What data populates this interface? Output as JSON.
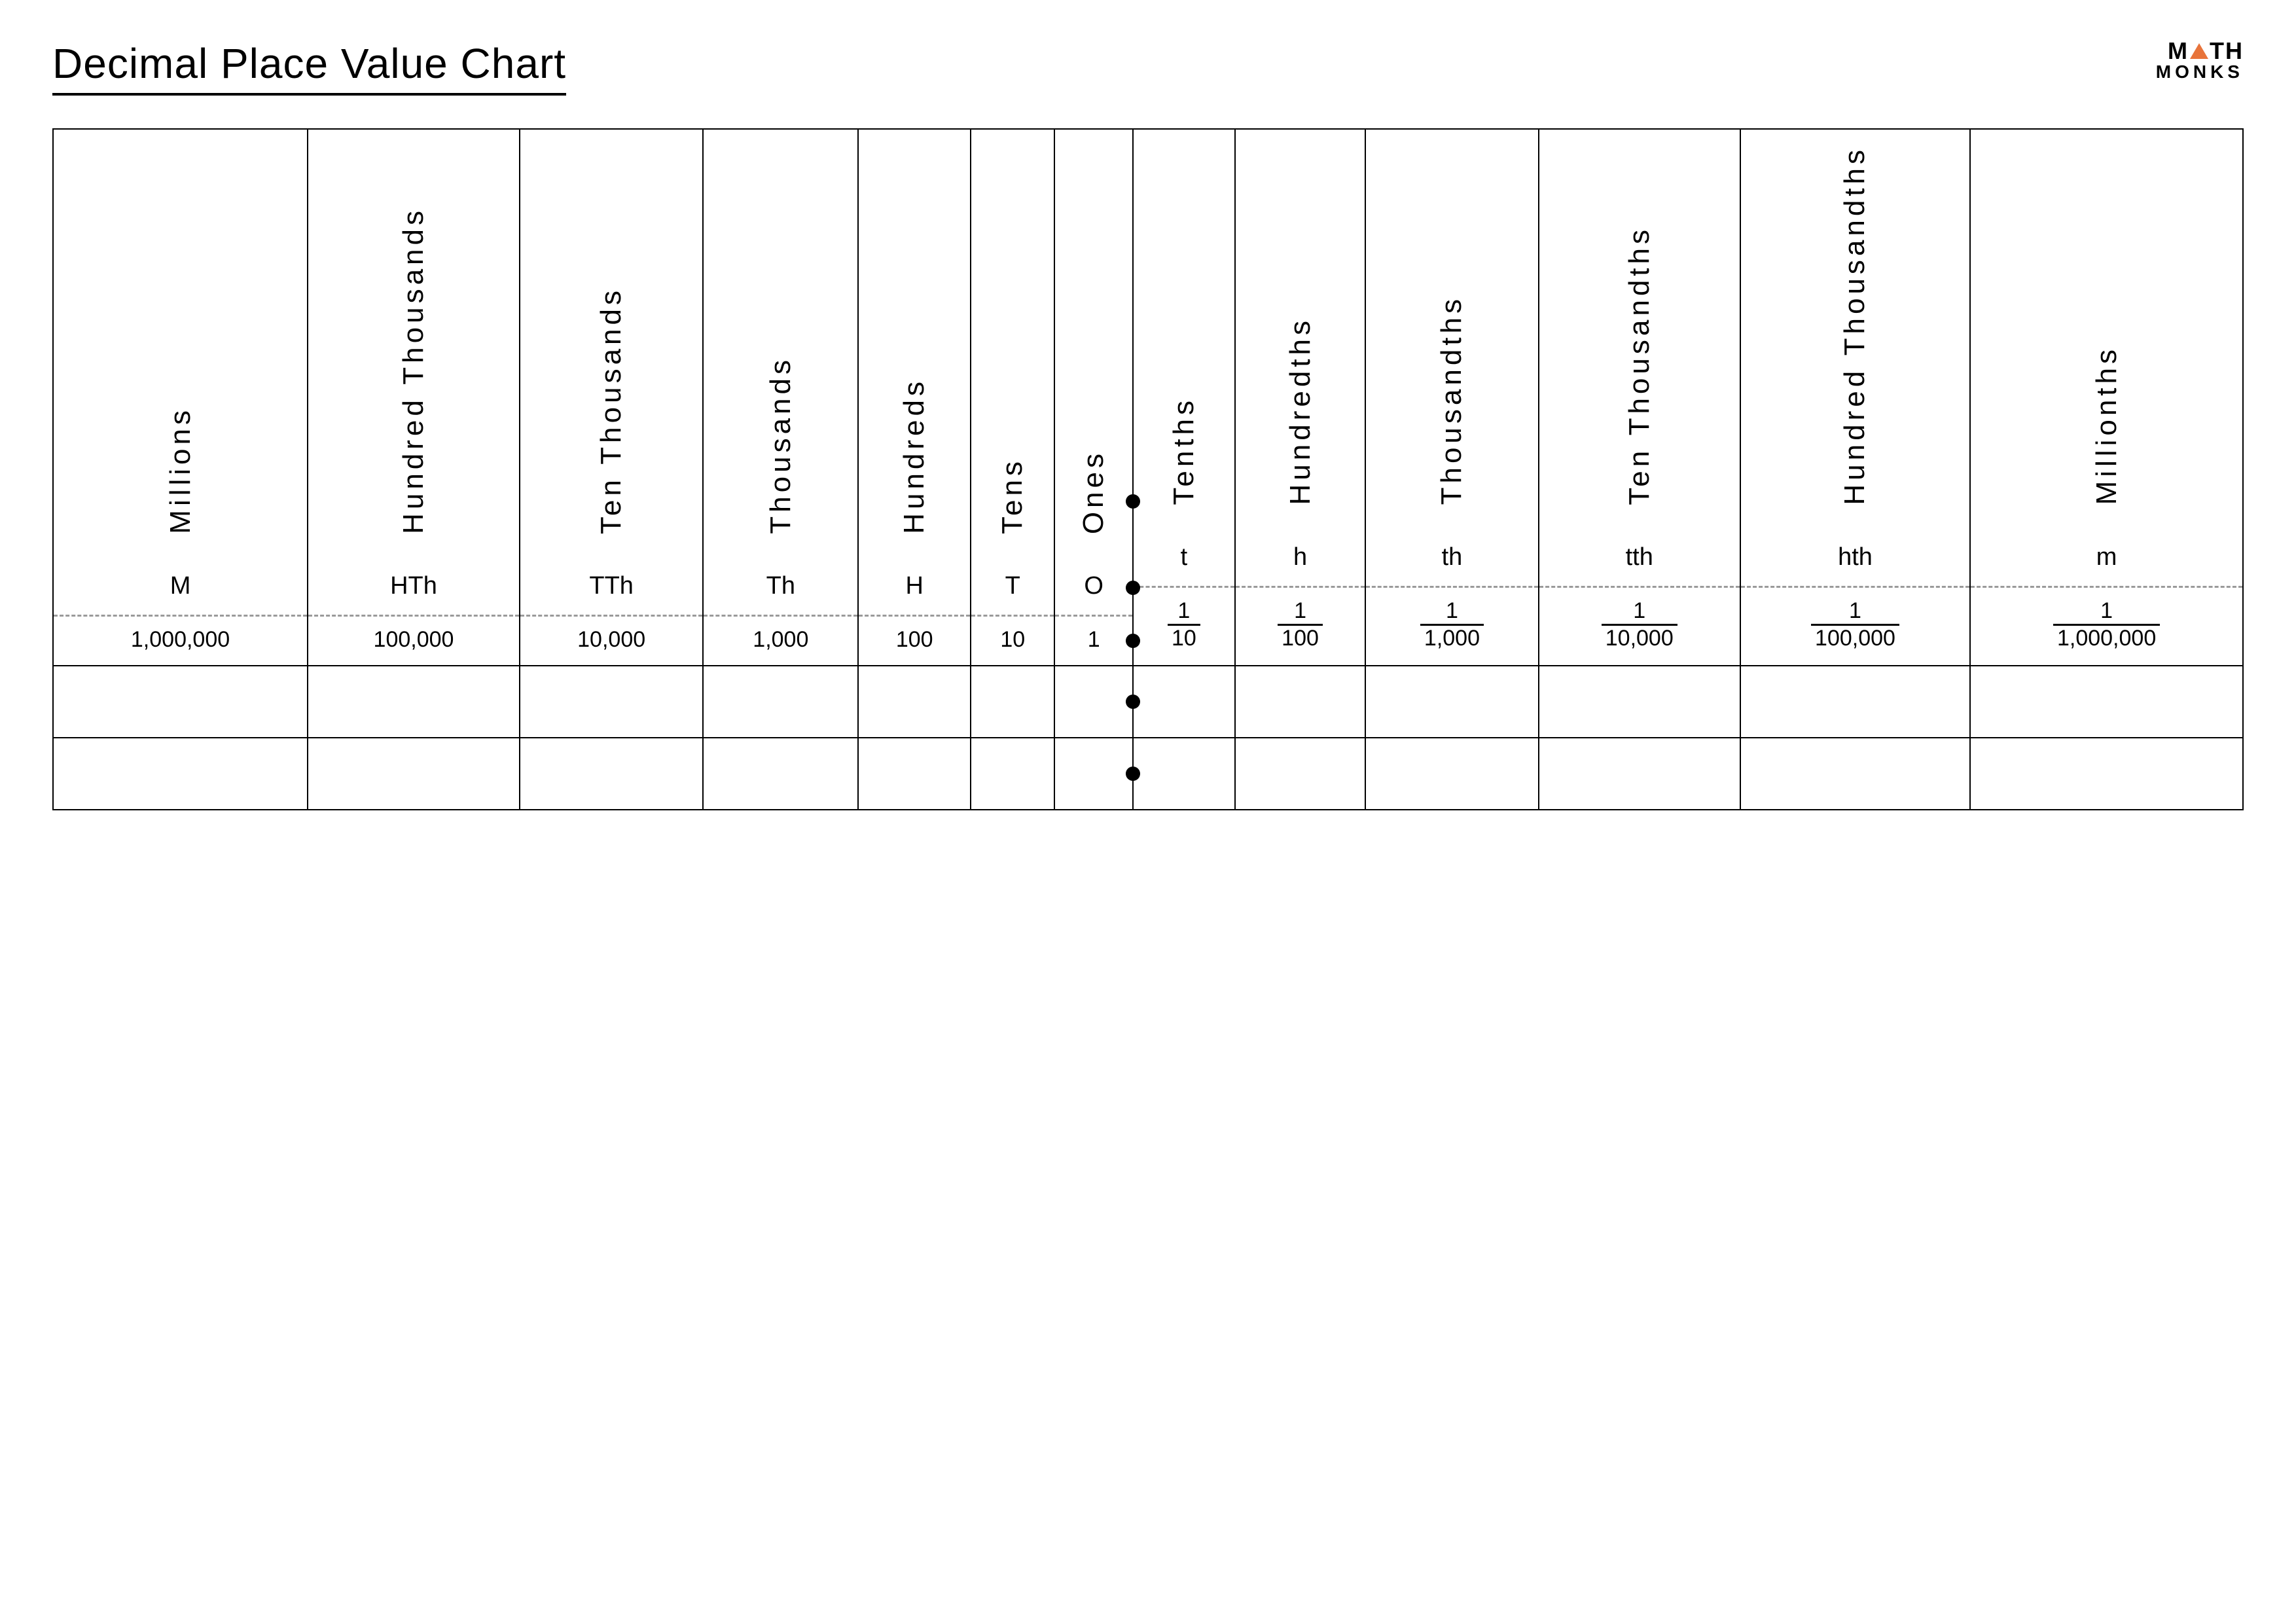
{
  "title": "Decimal Place Value Chart",
  "logo": {
    "line1_left": "M",
    "line1_right": "TH",
    "line2": "MONKS",
    "triangle_color": "#e8743b"
  },
  "colors": {
    "text": "#000000",
    "background": "#ffffff",
    "dashed": "#9a9a9a"
  },
  "typography": {
    "title_fontsize": 64,
    "vertical_label_fontsize": 44,
    "abbr_fontsize": 38,
    "value_fontsize": 34
  },
  "table": {
    "blank_rows": 2,
    "columns": [
      {
        "name": "Millions",
        "abbr": "M",
        "value": "1,000,000",
        "is_fraction": false
      },
      {
        "name": "Hundred Thousands",
        "abbr": "HTh",
        "value": "100,000",
        "is_fraction": false
      },
      {
        "name": "Ten Thousands",
        "abbr": "TTh",
        "value": "10,000",
        "is_fraction": false
      },
      {
        "name": "Thousands",
        "abbr": "Th",
        "value": "1,000",
        "is_fraction": false
      },
      {
        "name": "Hundreds",
        "abbr": "H",
        "value": "100",
        "is_fraction": false
      },
      {
        "name": "Tens",
        "abbr": "T",
        "value": "10",
        "is_fraction": false
      },
      {
        "name": "Ones",
        "abbr": "O",
        "value": "1",
        "is_fraction": false
      },
      {
        "name": "Tenths",
        "abbr": "t",
        "value_num": "1",
        "value_den": "10",
        "is_fraction": true
      },
      {
        "name": "Hundredths",
        "abbr": "h",
        "value_num": "1",
        "value_den": "100",
        "is_fraction": true
      },
      {
        "name": "Thousandths",
        "abbr": "th",
        "value_num": "1",
        "value_den": "1,000",
        "is_fraction": true
      },
      {
        "name": "Ten Thousandths",
        "abbr": "tth",
        "value_num": "1",
        "value_den": "10,000",
        "is_fraction": true
      },
      {
        "name": "Hundred Thousandths",
        "abbr": "hth",
        "value_num": "1",
        "value_den": "100,000",
        "is_fraction": true
      },
      {
        "name": "Millionths",
        "abbr": "m",
        "value_num": "1",
        "value_den": "1,000,000",
        "is_fraction": true
      }
    ],
    "decimal_point_after_index": 6
  }
}
